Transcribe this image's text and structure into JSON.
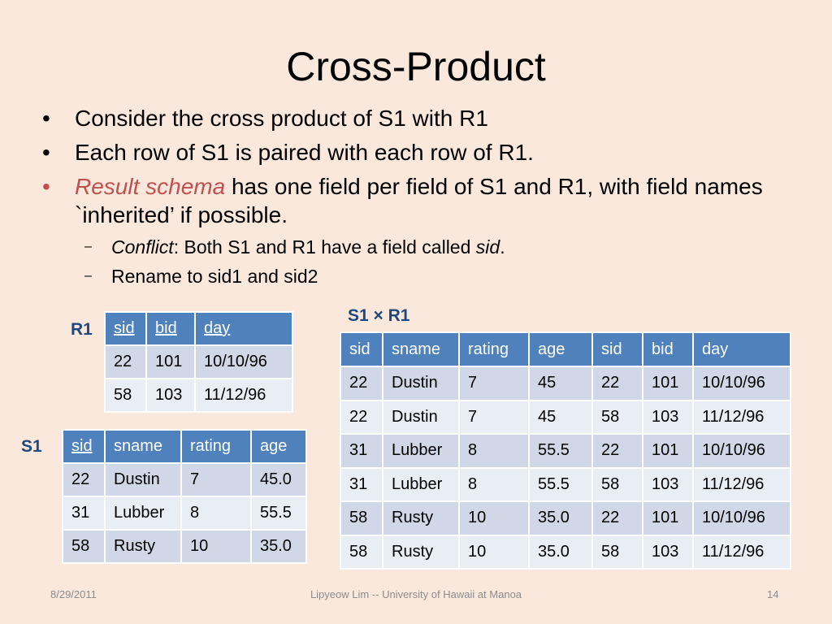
{
  "slide": {
    "title": "Cross-Product",
    "bullets": {
      "b1": "Consider the cross product of S1 with R1",
      "b2": "Each row of S1 is paired with each row of R1.",
      "b3_highlight": "Result schema",
      "b3_rest": " has one field per field of S1 and R1, with field names `inherited’ if possible.",
      "sub1_conflict": "Conflict",
      "sub1_mid": ":  Both S1 and R1 have a field called ",
      "sub1_sid": "sid",
      "sub1_end": ".",
      "sub2": "Rename to sid1 and sid2"
    },
    "bullet_symbol": "•",
    "dash_symbol": "–"
  },
  "r1": {
    "label": "R1",
    "headers": [
      "sid",
      "bid",
      "day"
    ],
    "rows": [
      [
        "22",
        "101",
        "10/10/96"
      ],
      [
        "58",
        "103",
        "11/12/96"
      ]
    ]
  },
  "s1": {
    "label": "S1",
    "headers": [
      "sid",
      "sname",
      "rating",
      "age"
    ],
    "rows": [
      [
        "22",
        "Dustin",
        "7",
        "45.0"
      ],
      [
        "31",
        "Lubber",
        "8",
        "55.5"
      ],
      [
        "58",
        "Rusty",
        "10",
        "35.0"
      ]
    ]
  },
  "cross": {
    "label": "S1 × R1",
    "headers": [
      "sid",
      "sname",
      "rating",
      "age",
      "sid",
      "bid",
      "day"
    ],
    "rows": [
      [
        "22",
        "Dustin",
        "7",
        "45",
        "22",
        "101",
        "10/10/96"
      ],
      [
        "22",
        "Dustin",
        "7",
        "45",
        "58",
        "103",
        "11/12/96"
      ],
      [
        "31",
        "Lubber",
        "8",
        "55.5",
        "22",
        "101",
        "10/10/96"
      ],
      [
        "31",
        "Lubber",
        "8",
        "55.5",
        "58",
        "103",
        "11/12/96"
      ],
      [
        "58",
        "Rusty",
        "10",
        "35.0",
        "22",
        "101",
        "10/10/96"
      ],
      [
        "58",
        "Rusty",
        "10",
        "35.0",
        "58",
        "103",
        "11/12/96"
      ]
    ]
  },
  "footer": {
    "date": "8/29/2011",
    "author": "Lipyeow Lim -- University of Hawaii at Manoa",
    "page": "14"
  }
}
